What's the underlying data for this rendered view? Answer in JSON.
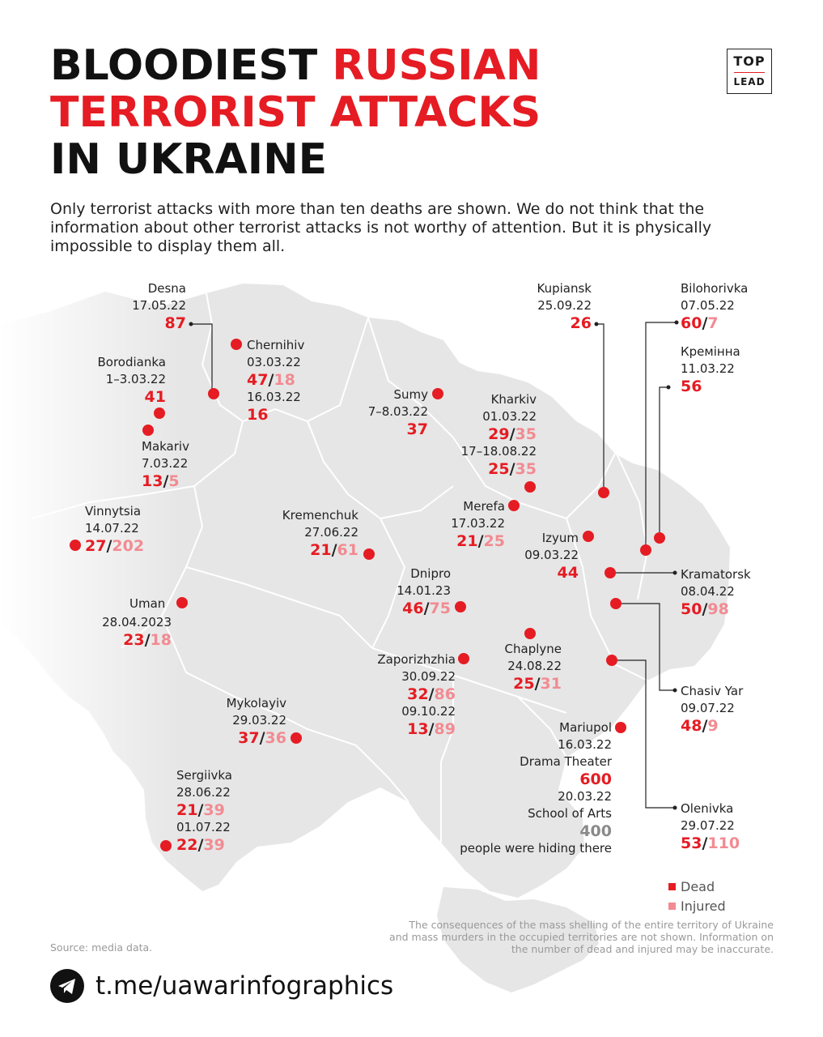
{
  "title": {
    "line1_black": "BLOODIEST ",
    "line1_red": "RUSSIAN",
    "line2_red": "TERRORIST ATTACKS",
    "line3_black": "IN UKRAINE"
  },
  "logo": {
    "top": "TOP",
    "bottom": "LEAD"
  },
  "intro": "Only terrorist attacks with more than ten deaths are shown. We do not think that the information about other terrorist attacks is not worthy of attention. But it is physically impossible to display them all.",
  "colors": {
    "dead": "#e51c23",
    "injured": "#f28b92",
    "map_fill": "#e6e6e6",
    "map_border": "#ffffff"
  },
  "attacks": {
    "desna": {
      "city": "Desna",
      "date": "17.05.22",
      "dead": "87"
    },
    "chernihiv": {
      "city": "Chernihiv",
      "date1": "03.03.22",
      "dead1": "47",
      "injured1": "18",
      "date2": "16.03.22",
      "dead2": "16"
    },
    "borodianka": {
      "city": "Borodianka",
      "date": "1–3.03.22",
      "dead": "41"
    },
    "makariv": {
      "city": "Makariv",
      "date": "7.03.22",
      "dead": "13",
      "injured": "5"
    },
    "sumy": {
      "city": "Sumy",
      "date": "7–8.03.22",
      "dead": "37"
    },
    "kupiansk": {
      "city": "Kupiansk",
      "date": "25.09.22",
      "dead": "26"
    },
    "bilohorivka": {
      "city": "Bilohorivka",
      "date": "07.05.22",
      "dead": "60",
      "injured": "7"
    },
    "kreminna": {
      "city": "Кремінна",
      "date": "11.03.22",
      "dead": "56"
    },
    "kharkiv": {
      "city": "Kharkiv",
      "date1": "01.03.22",
      "dead1": "29",
      "injured1": "35",
      "date2": "17–18.08.22",
      "dead2": "25",
      "injured2": "35"
    },
    "merefa": {
      "city": "Merefa",
      "date": "17.03.22",
      "dead": "21",
      "injured": "25"
    },
    "vinnytsia": {
      "city": "Vinnytsia",
      "date": "14.07.22",
      "dead": "27",
      "injured": "202"
    },
    "kremenchuk": {
      "city": "Kremenchuk",
      "date": "27.06.22",
      "dead": "21",
      "injured": "61"
    },
    "izyum": {
      "city": "Izyum",
      "date": "09.03.22",
      "dead": "44"
    },
    "dnipro": {
      "city": "Dnipro",
      "date": "14.01.23",
      "dead": "46",
      "injured": "75"
    },
    "kramatorsk": {
      "city": "Kramatorsk",
      "date": "08.04.22",
      "dead": "50",
      "injured": "98"
    },
    "uman": {
      "city": "Uman",
      "date": "28.04.2023",
      "dead": "23",
      "injured": "18"
    },
    "chaplyne": {
      "city": "Chaplyne",
      "date": "24.08.22",
      "dead": "25",
      "injured": "31"
    },
    "zaporizhzhia": {
      "city": "Zaporizhzhia",
      "date1": "30.09.22",
      "dead1": "32",
      "injured1": "86",
      "date2": "09.10.22",
      "dead2": "13",
      "injured2": "89"
    },
    "chasiv_yar": {
      "city": "Chasiv Yar",
      "date": "09.07.22",
      "dead": "48",
      "injured": "9"
    },
    "mykolayiv": {
      "city": "Mykolayiv",
      "date": "29.03.22",
      "dead": "37",
      "injured": "36"
    },
    "mariupol": {
      "city": "Mariupol",
      "date1": "16.03.22",
      "place1": "Drama Theater",
      "dead1": "600",
      "date2": "20.03.22",
      "place2": "School of Arts",
      "count2": "400",
      "note2": "people were hiding there"
    },
    "olenivka": {
      "city": "Olenivka",
      "date": "29.07.22",
      "dead": "53",
      "injured": "110"
    },
    "sergiivka": {
      "city": "Sergiivka",
      "date1": "28.06.22",
      "dead1": "21",
      "injured1": "39",
      "date2": "01.07.22",
      "dead2": "22",
      "injured2": "39"
    }
  },
  "legend": {
    "dead": "Dead",
    "injured": "Injured"
  },
  "disclaimer": "The consequences of the mass shelling of the entire territory of Ukraine and mass murders in the occupied territories are not shown. Information on the number of dead and injured may be inaccurate.",
  "source": "Source: media data.",
  "telegram": {
    "icon": "telegram-icon",
    "link": "t.me/uawarinfographics"
  }
}
